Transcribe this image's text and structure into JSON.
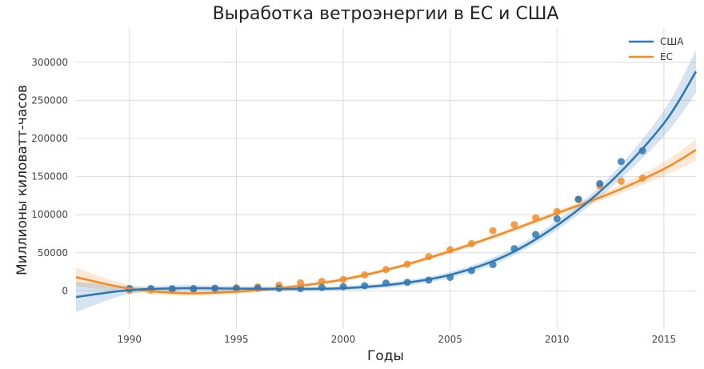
{
  "chart_data": {
    "type": "line",
    "title": "Выработка ветроэнергии в ЕС и США",
    "xlabel": "Годы",
    "ylabel": "Миллионы киловатт-часов",
    "xlim": [
      1987.5,
      2016.5
    ],
    "ylim": [
      -50000,
      345000
    ],
    "x_ticks": [
      1990,
      1995,
      2000,
      2005,
      2010,
      2015
    ],
    "y_ticks": [
      0,
      50000,
      100000,
      150000,
      200000,
      250000,
      300000
    ],
    "grid": true,
    "legend_position": "top-right",
    "series": [
      {
        "name": "США",
        "color": "#2f78b4",
        "points": {
          "x": [
            1990,
            1991,
            1992,
            1993,
            1994,
            1995,
            1996,
            1997,
            1998,
            1999,
            2000,
            2001,
            2002,
            2003,
            2004,
            2005,
            2006,
            2007,
            2008,
            2009,
            2010,
            2011,
            2012,
            2013,
            2014
          ],
          "y": [
            3000,
            3000,
            2900,
            3000,
            3400,
            3200,
            3400,
            3300,
            3000,
            4500,
            5600,
            6700,
            10300,
            11200,
            14100,
            17800,
            26600,
            34500,
            55400,
            73900,
            94700,
            120200,
            140800,
            169700,
            183900
          ]
        },
        "fit": {
          "x": [
            1987.5,
            1990,
            1992.5,
            1995,
            1997.5,
            2000,
            2002.5,
            2005,
            2007.5,
            2010,
            2012.5,
            2015,
            2016.5
          ],
          "y": [
            -8000,
            1000,
            3500,
            3000,
            2500,
            3500,
            9000,
            21000,
            45000,
            86000,
            143000,
            220000,
            288000
          ]
        },
        "band_halfwidth": [
          20000,
          5000,
          4000,
          3500,
          3000,
          3000,
          3500,
          4000,
          5000,
          6000,
          8000,
          17000,
          28000
        ]
      },
      {
        "name": "ЕС",
        "color": "#f28c28",
        "points": {
          "x": [
            1990,
            1991,
            1992,
            1993,
            1994,
            1995,
            1996,
            1997,
            1998,
            1999,
            2000,
            2001,
            2002,
            2003,
            2004,
            2005,
            2006,
            2007,
            2008,
            2009,
            2010,
            2011,
            2012,
            2013,
            2014
          ],
          "y": [
            800,
            1000,
            1500,
            2100,
            3200,
            4100,
            5400,
            7400,
            10500,
            12500,
            15000,
            21000,
            28000,
            35000,
            45000,
            54000,
            62000,
            79000,
            87000,
            96000,
            104000,
            120000,
            138000,
            144000,
            148000
          ]
        },
        "fit": {
          "x": [
            1987.5,
            1990,
            1992.5,
            1995,
            1997.5,
            2000,
            2002.5,
            2005,
            2007.5,
            2010,
            2012.5,
            2015,
            2016.5
          ],
          "y": [
            18000,
            3000,
            -3000,
            -1000,
            5000,
            15000,
            31000,
            52000,
            76000,
            102000,
            128000,
            160000,
            185000
          ]
        },
        "band_halfwidth": [
          12000,
          5000,
          3500,
          3000,
          2500,
          2500,
          2500,
          3000,
          3000,
          3500,
          5000,
          9000,
          14000
        ]
      }
    ]
  }
}
